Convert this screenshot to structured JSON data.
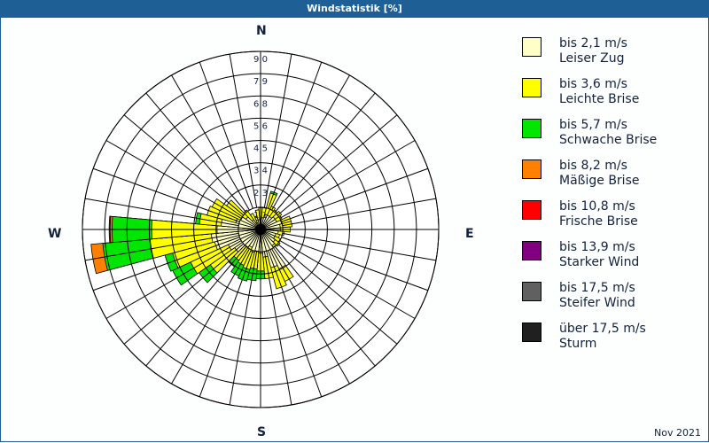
{
  "window": {
    "title": "Windstatistik [%]"
  },
  "compass": {
    "n": "N",
    "e": "E",
    "s": "S",
    "w": "W"
  },
  "footer": {
    "date": "Nov 2021"
  },
  "legend": {
    "items": [
      {
        "range": "bis 2,1 m/s",
        "name": "Leiser Zug",
        "color": "#ffffc8"
      },
      {
        "range": "bis 3,6 m/s",
        "name": "Leichte Brise",
        "color": "#ffff00"
      },
      {
        "range": "bis 5,7 m/s",
        "name": "Schwache Brise",
        "color": "#00e600"
      },
      {
        "range": "bis 8,2 m/s",
        "name": "Mäßige Brise",
        "color": "#ff8000"
      },
      {
        "range": "bis 10,8 m/s",
        "name": "Frische Brise",
        "color": "#ff0000"
      },
      {
        "range": "bis 13,9 m/s",
        "name": "Starker Wind",
        "color": "#800080"
      },
      {
        "range": "bis 17,5 m/s",
        "name": "Steifer Wind",
        "color": "#606060"
      },
      {
        "range": "über 17,5 m/s",
        "name": "Sturm",
        "color": "#202020"
      }
    ]
  },
  "chart_data": {
    "type": "wind-rose",
    "title": "Windstatistik [%]",
    "period": "Nov 2021",
    "unit": "%",
    "rmax": 9.0,
    "ring_labels": [
      "1,1",
      "2,3",
      "3,4",
      "4,5",
      "5,6",
      "6,8",
      "7,9",
      "9,0"
    ],
    "sector_width_deg": 10,
    "classes": [
      "bis 2,1 m/s",
      "bis 3,6 m/s",
      "bis 5,7 m/s",
      "bis 8,2 m/s",
      "bis 10,8 m/s",
      "bis 13,9 m/s",
      "bis 17,5 m/s",
      "über 17,5 m/s"
    ],
    "note": "cumulative values (%) per direction, outermost edge of each speed class",
    "directions": [
      {
        "deg": 0,
        "cum": [
          0.5,
          1.1
        ]
      },
      {
        "deg": 10,
        "cum": [
          0.6,
          1.1
        ]
      },
      {
        "deg": 20,
        "cum": [
          0.8,
          1.9,
          2.0
        ]
      },
      {
        "deg": 30,
        "cum": [
          0.8,
          1.3
        ]
      },
      {
        "deg": 40,
        "cum": [
          0.8,
          1.2
        ]
      },
      {
        "deg": 50,
        "cum": [
          0.9,
          1.3
        ]
      },
      {
        "deg": 60,
        "cum": [
          0.9,
          1.2
        ]
      },
      {
        "deg": 70,
        "cum": [
          1.1,
          1.6
        ]
      },
      {
        "deg": 80,
        "cum": [
          1.0,
          1.6
        ]
      },
      {
        "deg": 90,
        "cum": [
          1.0,
          1.5
        ]
      },
      {
        "deg": 100,
        "cum": [
          0.9,
          1.2
        ]
      },
      {
        "deg": 110,
        "cum": [
          0.8,
          1.0
        ]
      },
      {
        "deg": 120,
        "cum": [
          0.8,
          1.1
        ]
      },
      {
        "deg": 130,
        "cum": [
          0.9,
          1.2
        ]
      },
      {
        "deg": 140,
        "cum": [
          1.0,
          1.1
        ]
      },
      {
        "deg": 150,
        "cum": [
          2.2,
          2.9
        ]
      },
      {
        "deg": 160,
        "cum": [
          2.0,
          3.1
        ]
      },
      {
        "deg": 170,
        "cum": [
          1.4,
          2.5
        ]
      },
      {
        "deg": 180,
        "cum": [
          1.2,
          2.1,
          2.5
        ]
      },
      {
        "deg": 190,
        "cum": [
          1.1,
          2.0,
          2.6
        ]
      },
      {
        "deg": 200,
        "cum": [
          1.2,
          2.1,
          2.7
        ]
      },
      {
        "deg": 210,
        "cum": [
          1.0,
          2.0,
          2.6
        ]
      },
      {
        "deg": 220,
        "cum": [
          1.1,
          1.9,
          2.3
        ]
      },
      {
        "deg": 230,
        "cum": [
          1.6,
          3.1,
          3.8
        ]
      },
      {
        "deg": 240,
        "cum": [
          1.8,
          3.9,
          4.9
        ]
      },
      {
        "deg": 250,
        "cum": [
          2.4,
          4.6,
          5.0
        ]
      },
      {
        "deg": 260,
        "cum": [
          2.5,
          5.6,
          8.0,
          8.6
        ]
      },
      {
        "deg": 270,
        "cum": [
          2.2,
          5.5,
          7.5,
          7.6,
          7.65
        ]
      },
      {
        "deg": 280,
        "cum": [
          2.0,
          3.1,
          3.3
        ]
      },
      {
        "deg": 290,
        "cum": [
          1.3,
          2.8
        ]
      },
      {
        "deg": 300,
        "cum": [
          1.1,
          2.7
        ]
      },
      {
        "deg": 310,
        "cum": [
          0.9,
          2.1
        ]
      },
      {
        "deg": 320,
        "cum": [
          0.6,
          1.2
        ]
      },
      {
        "deg": 330,
        "cum": [
          0.4,
          0.9
        ]
      },
      {
        "deg": 340,
        "cum": [
          0.5,
          0.7
        ]
      },
      {
        "deg": 350,
        "cum": [
          0.5,
          1.0
        ]
      }
    ]
  }
}
